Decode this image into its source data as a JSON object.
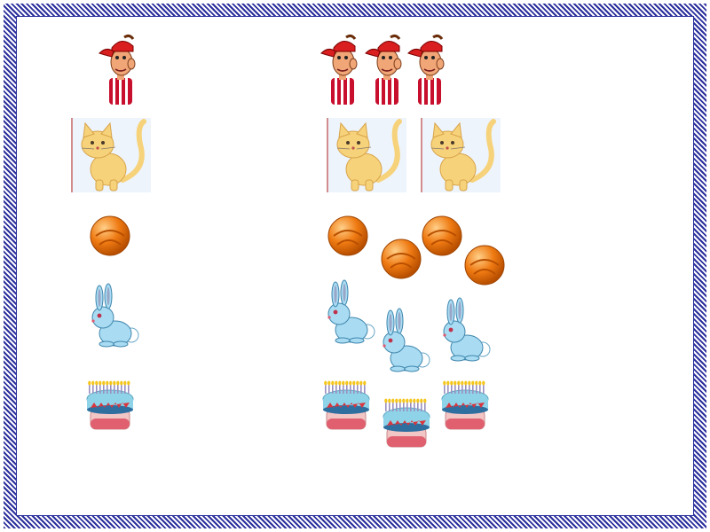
{
  "palette": {
    "frame": "#2b2f9c",
    "hat": "#d91f1f",
    "skin": "#f0a676",
    "shirt": "#c8102e",
    "cat_fur": "#f6d27a",
    "ball": "#ef7a12",
    "bunny": "#a9dcf2",
    "cake_icing": "#8fd3e8",
    "cake_base": "#f3c6c6",
    "candle_flame": "#f5c518"
  },
  "rows": [
    {
      "item": "boy-icon",
      "left_count": 1,
      "right_count": 3
    },
    {
      "item": "cat-icon",
      "left_count": 1,
      "right_count": 2
    },
    {
      "item": "ball-icon",
      "left_count": 1,
      "right_count": 4
    },
    {
      "item": "bunny-icon",
      "left_count": 1,
      "right_count": 3
    },
    {
      "item": "cake-icon",
      "left_count": 1,
      "right_count": 3
    }
  ]
}
